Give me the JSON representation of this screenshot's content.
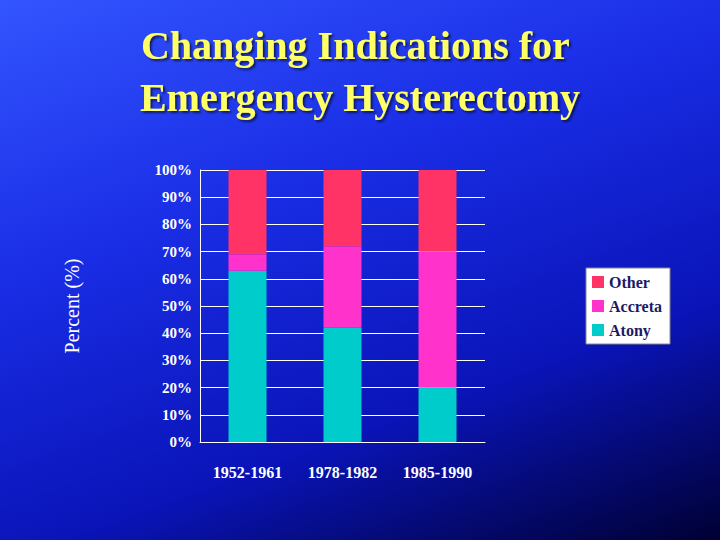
{
  "chart_data": {
    "type": "bar",
    "title": "Changing Indications for Emergency Hysterectomy",
    "ylabel": "Percent (%)",
    "categories": [
      "1952-1961",
      "1978-1982",
      "1985-1990"
    ],
    "series": [
      {
        "name": "Atony",
        "color": "#00cccc",
        "values": [
          63,
          42,
          20
        ]
      },
      {
        "name": "Accreta",
        "color": "#ff33cc",
        "values": [
          6,
          30,
          50
        ]
      },
      {
        "name": "Other",
        "color": "#ff3366",
        "values": [
          31,
          28,
          30
        ]
      }
    ],
    "ylim": [
      0,
      100
    ],
    "yticks": [
      {
        "value": 0,
        "label": "0%"
      },
      {
        "value": 10,
        "label": "10%"
      },
      {
        "value": 20,
        "label": "20%"
      },
      {
        "value": 30,
        "label": "30%"
      },
      {
        "value": 40,
        "label": "40%"
      },
      {
        "value": 50,
        "label": "50%"
      },
      {
        "value": 60,
        "label": "60%"
      },
      {
        "value": 70,
        "label": "70%"
      },
      {
        "value": 80,
        "label": "80%"
      },
      {
        "value": 90,
        "label": "90%"
      },
      {
        "value": 100,
        "label": "100%"
      }
    ],
    "grid": true,
    "stacked": true,
    "legend": "right"
  }
}
